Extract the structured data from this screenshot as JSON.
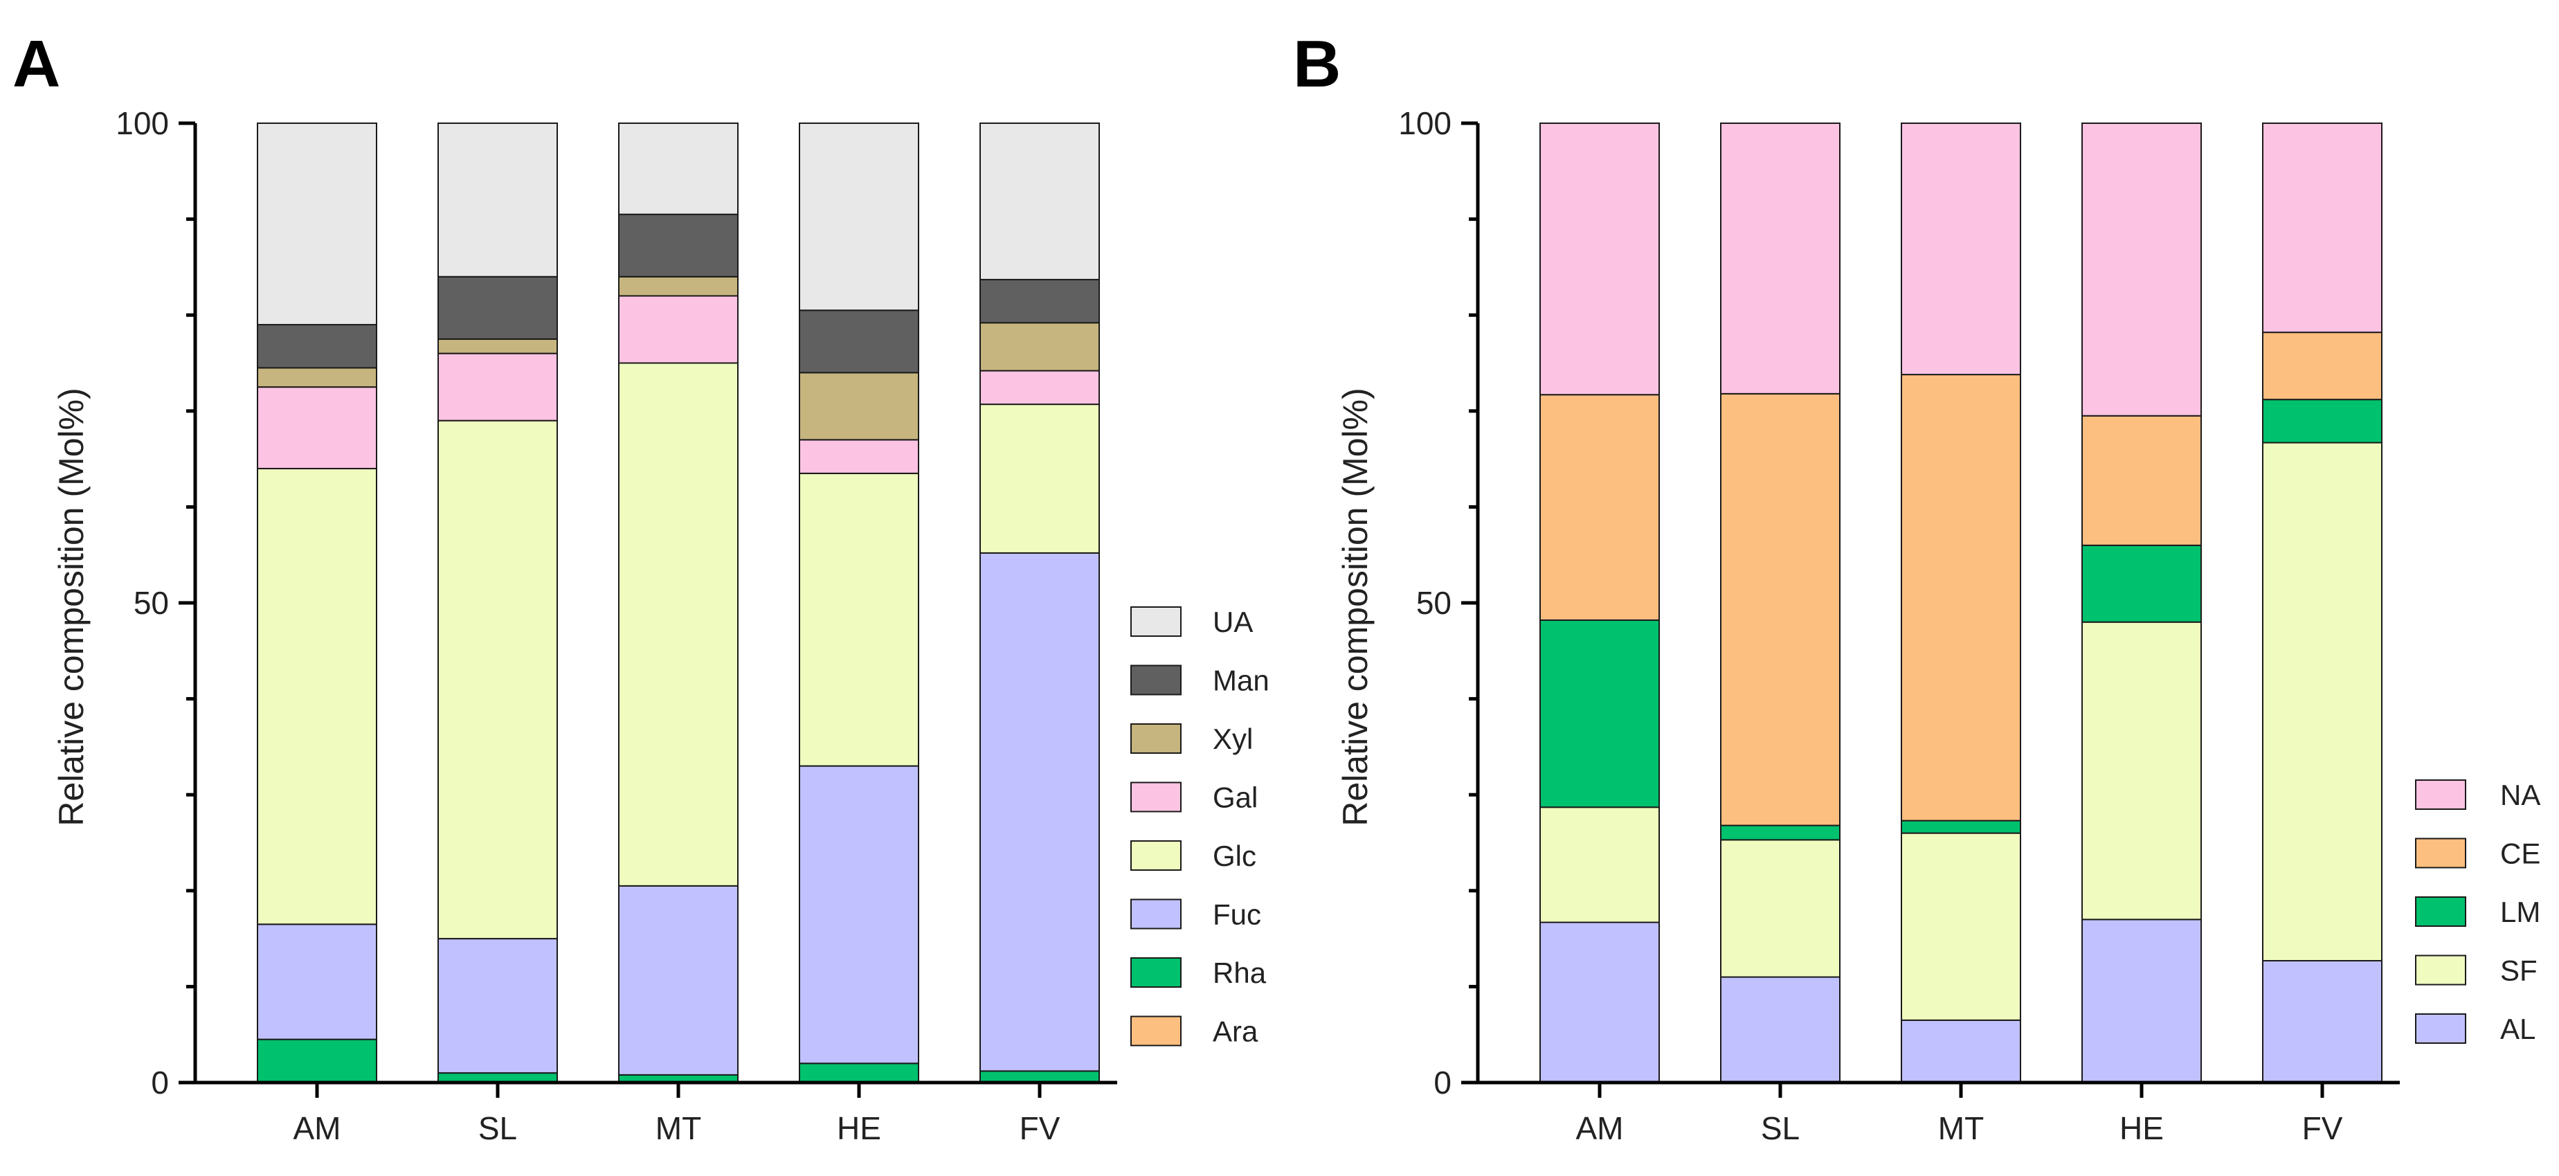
{
  "chart_data": [
    {
      "type": "bar",
      "stacked": true,
      "panel": "A",
      "categories": [
        "AM",
        "SL",
        "MT",
        "HE",
        "FV"
      ],
      "ylabel": "Relative composition (Mol%)",
      "ylim": [
        0,
        100
      ],
      "yticks": [
        "0",
        "50",
        "100"
      ],
      "legend_position": "right",
      "series": [
        {
          "name": "Ara",
          "color": "#fdbf80",
          "values": [
            0,
            0,
            0,
            0,
            0
          ]
        },
        {
          "name": "Rha",
          "color": "#00c16e",
          "values": [
            4.5,
            1.0,
            0.8,
            2.0,
            1.2
          ]
        },
        {
          "name": "Fuc",
          "color": "#c1c1ff",
          "values": [
            12.0,
            14.0,
            19.7,
            31.0,
            54.0
          ]
        },
        {
          "name": "Glc",
          "color": "#f0fcbf",
          "values": [
            47.5,
            54.0,
            54.5,
            30.5,
            15.5
          ]
        },
        {
          "name": "Gal",
          "color": "#fcc3e3",
          "values": [
            8.5,
            7.0,
            7.0,
            3.5,
            3.5
          ]
        },
        {
          "name": "Xyl",
          "color": "#c6b57e",
          "values": [
            2.0,
            1.5,
            2.0,
            7.0,
            5.0
          ]
        },
        {
          "name": "Man",
          "color": "#606060",
          "values": [
            4.5,
            6.5,
            6.5,
            6.5,
            4.5
          ]
        },
        {
          "name": "UA",
          "color": "#e8e8e8",
          "values": [
            21.0,
            16.0,
            9.5,
            19.5,
            16.3
          ]
        }
      ]
    },
    {
      "type": "bar",
      "stacked": true,
      "panel": "B",
      "categories": [
        "AM",
        "SL",
        "MT",
        "HE",
        "FV"
      ],
      "ylabel": "Relative composition (Mol%)",
      "ylim": [
        0,
        100
      ],
      "yticks": [
        "0",
        "50",
        "100"
      ],
      "legend_position": "bottom-right",
      "series": [
        {
          "name": "AL",
          "color": "#c1c1ff",
          "values": [
            16.7,
            11.0,
            6.5,
            17.0,
            12.7
          ]
        },
        {
          "name": "SF",
          "color": "#f0fcbf",
          "values": [
            12.0,
            14.3,
            19.5,
            31.0,
            54.0
          ]
        },
        {
          "name": "LM",
          "color": "#00c16e",
          "values": [
            19.5,
            1.5,
            1.3,
            8.0,
            4.5
          ]
        },
        {
          "name": "CE",
          "color": "#fdbf80",
          "values": [
            23.5,
            45.0,
            46.5,
            13.5,
            7.0
          ]
        },
        {
          "name": "NA",
          "color": "#fcc3e3",
          "values": [
            28.3,
            28.2,
            26.2,
            30.5,
            21.8
          ]
        }
      ]
    }
  ]
}
